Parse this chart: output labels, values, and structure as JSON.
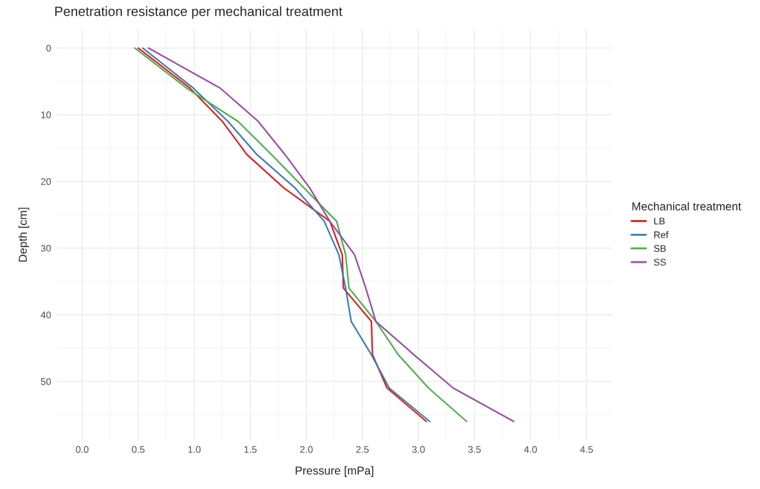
{
  "chart_data": {
    "type": "line",
    "title": "Penetration resistance per mechanical treatment",
    "xlabel": "Pressure [mPa]",
    "ylabel": "Depth [cm]",
    "legend_title": "Mechanical treatment",
    "legend": "right",
    "series": [
      {
        "name": "LB",
        "color": "#e41a1c",
        "x": [
          0.5,
          0.96,
          1.25,
          1.47,
          1.8,
          2.21,
          2.32,
          2.33,
          2.58,
          2.59,
          2.72,
          3.07
        ],
        "values": [
          0,
          6,
          11,
          16,
          21,
          26,
          31,
          36,
          41,
          46,
          51,
          56
        ]
      },
      {
        "name": "Ref",
        "color": "#377eb8",
        "x": [
          0.54,
          0.99,
          1.3,
          1.56,
          1.9,
          2.16,
          2.29,
          2.35,
          2.4,
          2.58,
          2.74,
          3.1
        ],
        "values": [
          0,
          6,
          11,
          16,
          21,
          26,
          31,
          36,
          41,
          46,
          51,
          56
        ]
      },
      {
        "name": "SB",
        "color": "#4daf4a",
        "x": [
          0.47,
          0.93,
          1.39,
          1.69,
          1.98,
          2.27,
          2.35,
          2.38,
          2.62,
          2.82,
          3.09,
          3.43
        ],
        "values": [
          0,
          6,
          11,
          16,
          21,
          26,
          31,
          36,
          41,
          46,
          51,
          56
        ]
      },
      {
        "name": "SS",
        "color": "#984ea3",
        "x": [
          0.59,
          1.23,
          1.57,
          1.81,
          2.03,
          2.21,
          2.43,
          2.53,
          2.62,
          2.96,
          3.31,
          3.85
        ],
        "values": [
          0,
          6,
          11,
          16,
          21,
          26,
          31,
          36,
          41,
          46,
          51,
          56
        ]
      }
    ],
    "xlim": [
      -0.225,
      4.725
    ],
    "ylim": [
      58.8,
      -2.8
    ],
    "xticks": [
      {
        "value": 0,
        "label": "0.0"
      },
      {
        "value": 0.5,
        "label": "0.5"
      },
      {
        "value": 1,
        "label": "1.0"
      },
      {
        "value": 1.5,
        "label": "1.5"
      },
      {
        "value": 2,
        "label": "2.0"
      },
      {
        "value": 2.5,
        "label": "2.5"
      },
      {
        "value": 3,
        "label": "3.0"
      },
      {
        "value": 3.5,
        "label": "3.5"
      },
      {
        "value": 4,
        "label": "4.0"
      },
      {
        "value": 4.5,
        "label": "4.5"
      }
    ],
    "yticks": [
      0,
      10,
      20,
      30,
      40,
      50
    ],
    "grid": true,
    "line_style": "solid",
    "marker": "none"
  }
}
